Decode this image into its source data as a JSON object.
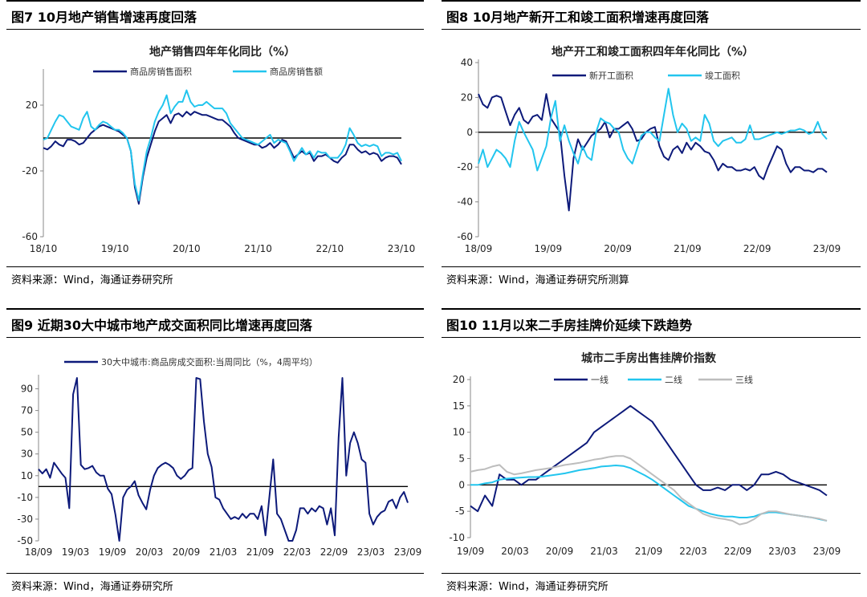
{
  "panels": [
    {
      "header": "图7  10月地产销售增速再度回落",
      "footer": "资料来源：Wind，海通证券研究所"
    },
    {
      "header": "图8  10月地产新开工和竣工面积增速再度回落",
      "footer": "资料来源：Wind，海通证券研究所测算"
    },
    {
      "header": "图9  近期30大中城市地产成交面积同比增速再度回落",
      "footer": "资料来源：Wind，海通证券研究所"
    },
    {
      "header": "图10 11月以来二手房挂牌价延续下跌趋势",
      "footer": "资料来源：Wind，海通证券研究所"
    }
  ],
  "colors": {
    "navy": "#0d1a7a",
    "cyan": "#22c5ee",
    "gray": "#bdbdbd"
  },
  "chart_data": [
    {
      "type": "line",
      "title": "地产销售四年年化同比（%）",
      "x_start": "2018-10",
      "x_step": "month",
      "xticks": [
        "18/10",
        "19/10",
        "20/10",
        "21/10",
        "22/10",
        "23/10"
      ],
      "ylim": [
        -60,
        40
      ],
      "yticks": [
        20,
        -20,
        -60
      ],
      "legend": "top",
      "series": [
        {
          "name": "商品房销售面积",
          "color": "#0d1a7a",
          "values": [
            -6,
            -7,
            -5,
            -2,
            -4,
            -5,
            -1,
            -1,
            -2,
            -4,
            -3,
            0,
            3,
            5,
            7,
            8,
            7,
            6,
            5,
            4,
            2,
            0,
            -8,
            -30,
            -40,
            -24,
            -12,
            -4,
            4,
            10,
            12,
            14,
            9,
            14,
            15,
            13,
            16,
            14,
            16,
            15,
            14,
            14,
            13,
            12,
            11,
            11,
            9,
            7,
            3,
            0,
            -1,
            -2,
            -3,
            -4,
            -4,
            -6,
            -5,
            -3,
            -6,
            -4,
            -1,
            -2,
            -7,
            -12,
            -10,
            -8,
            -10,
            -9,
            -14,
            -11,
            -11,
            -10,
            -12,
            -14,
            -15,
            -12,
            -10,
            -4,
            -4,
            -7,
            -9,
            -8,
            -10,
            -9,
            -10,
            -14,
            -12,
            -11,
            -11,
            -12,
            -16
          ]
        },
        {
          "name": "商品房销售额",
          "color": "#22c5ee",
          "values": [
            -1,
            0,
            5,
            10,
            14,
            13,
            10,
            7,
            6,
            5,
            12,
            16,
            7,
            5,
            8,
            10,
            9,
            7,
            5,
            5,
            3,
            0,
            -8,
            -28,
            -38,
            -22,
            -8,
            0,
            10,
            16,
            20,
            26,
            15,
            19,
            22,
            22,
            29,
            22,
            19,
            20,
            20,
            22,
            20,
            18,
            18,
            18,
            15,
            9,
            6,
            3,
            0,
            -1,
            -2,
            -3,
            -4,
            -2,
            0,
            2,
            -3,
            -1,
            -2,
            -3,
            -8,
            -14,
            -10,
            -6,
            -10,
            -8,
            -12,
            -8,
            -9,
            -9,
            -12,
            -12,
            -12,
            -9,
            -4,
            6,
            2,
            -3,
            -5,
            -4,
            -5,
            -4,
            -5,
            -11,
            -9,
            -9,
            -10,
            -9,
            -14
          ]
        }
      ]
    },
    {
      "type": "line",
      "title": "地产开工和竣工面积四年年化同比（%）",
      "x_start": "2018-09",
      "x_step": "month",
      "xticks": [
        "18/09",
        "19/09",
        "20/09",
        "21/09",
        "22/09",
        "23/09"
      ],
      "ylim": [
        -60,
        40
      ],
      "yticks": [
        40,
        20,
        0,
        -20,
        -40,
        -60
      ],
      "legend": "top",
      "series": [
        {
          "name": "新开工面积",
          "color": "#0d1a7a",
          "values": [
            22,
            16,
            14,
            20,
            21,
            20,
            12,
            4,
            10,
            14,
            7,
            5,
            9,
            10,
            7,
            22,
            8,
            4,
            0,
            -25,
            -45,
            -15,
            -4,
            -10,
            -6,
            -2,
            0,
            2,
            6,
            -3,
            2,
            2,
            4,
            6,
            2,
            -5,
            -4,
            0,
            2,
            3,
            -8,
            -14,
            -16,
            -10,
            -8,
            -12,
            -6,
            -10,
            -6,
            -8,
            -11,
            -12,
            -16,
            -22,
            -18,
            -20,
            -20,
            -22,
            -22,
            -21,
            -22,
            -20,
            -25,
            -27,
            -20,
            -14,
            -8,
            -10,
            -18,
            -23,
            -20,
            -20,
            -22,
            -22,
            -23,
            -21,
            -21,
            -23
          ]
        },
        {
          "name": "竣工面积",
          "color": "#22c5ee",
          "values": [
            -18,
            -10,
            -20,
            -15,
            -10,
            -12,
            -15,
            -20,
            -5,
            6,
            0,
            -5,
            -10,
            -22,
            -15,
            -8,
            8,
            18,
            -5,
            4,
            -5,
            -12,
            -18,
            -8,
            -14,
            -16,
            0,
            8,
            6,
            5,
            2,
            0,
            -10,
            -15,
            -18,
            -10,
            -2,
            0,
            0,
            -3,
            -5,
            10,
            25,
            10,
            0,
            5,
            2,
            -5,
            -3,
            -5,
            10,
            5,
            -5,
            -8,
            -5,
            -4,
            -3,
            -6,
            -6,
            -4,
            4,
            -4,
            -4,
            -3,
            -2,
            -1,
            0,
            -1,
            0,
            1,
            1,
            2,
            1,
            -1,
            0,
            6,
            -1,
            -4
          ]
        }
      ]
    },
    {
      "type": "line",
      "title": "",
      "x_start": "2018-09",
      "x_step": "week",
      "xticks": [
        "18/09",
        "19/03",
        "19/09",
        "20/03",
        "20/09",
        "21/03",
        "21/09",
        "22/03",
        "22/09",
        "23/03",
        "23/09"
      ],
      "ylim": [
        -50,
        100
      ],
      "yticks": [
        90,
        70,
        50,
        30,
        10,
        -10,
        -30,
        -50
      ],
      "legend": "top",
      "series": [
        {
          "name": "30大中城市:商品房成交面积:当周同比（%，4周平均）",
          "color": "#0d1a7a",
          "values": [
            16,
            12,
            16,
            8,
            22,
            17,
            12,
            8,
            -20,
            85,
            100,
            20,
            16,
            17,
            19,
            13,
            10,
            10,
            -2,
            -7,
            -26,
            -50,
            -10,
            -3,
            0,
            5,
            -8,
            -15,
            -21,
            -3,
            10,
            17,
            20,
            22,
            20,
            17,
            10,
            7,
            10,
            15,
            17,
            100,
            99,
            60,
            30,
            18,
            -10,
            -12,
            -20,
            -25,
            -30,
            -28,
            -30,
            -25,
            -29,
            -25,
            -25,
            -30,
            -18,
            -45,
            -10,
            25,
            -25,
            -30,
            -40,
            -50,
            -50,
            -40,
            -20,
            -20,
            -25,
            -20,
            -23,
            -18,
            -20,
            -35,
            -20,
            -45,
            45,
            100,
            10,
            40,
            50,
            40,
            25,
            22,
            -25,
            -35,
            -28,
            -24,
            -22,
            -14,
            -12,
            -20,
            -10,
            -5,
            -15
          ]
        }
      ]
    },
    {
      "type": "line",
      "title": "城市二手房出售挂牌价指数",
      "x_start": "2019-09",
      "x_step": "month",
      "xticks": [
        "19/09",
        "20/03",
        "20/09",
        "21/03",
        "21/09",
        "22/03",
        "22/09",
        "23/03",
        "23/09"
      ],
      "ylim": [
        -10,
        20
      ],
      "yticks": [
        20,
        15,
        10,
        5,
        0,
        -5,
        -10
      ],
      "legend": "top",
      "series": [
        {
          "name": "一线",
          "color": "#0d1a7a",
          "values": [
            -4,
            -5,
            -2,
            -4,
            2,
            1,
            1,
            0,
            1,
            1,
            2,
            3,
            4,
            5,
            6,
            7,
            8,
            10,
            11,
            12,
            13,
            14,
            15,
            14,
            13,
            12,
            10,
            8,
            6,
            4,
            2,
            0,
            -1,
            -1,
            -0.5,
            -1,
            0,
            0,
            -1,
            0,
            2,
            2,
            2.5,
            2,
            1,
            0.5,
            0,
            -0.5,
            -1,
            -2
          ]
        },
        {
          "name": "二线",
          "color": "#22c5ee",
          "values": [
            0,
            0,
            0.3,
            0.5,
            1,
            1.2,
            1.3,
            1.4,
            1.5,
            1.5,
            1.6,
            1.8,
            2,
            2.2,
            2.5,
            2.8,
            3,
            3.2,
            3.5,
            3.6,
            3.7,
            3.6,
            3.2,
            2.5,
            1.8,
            1,
            0,
            -1,
            -2,
            -3,
            -4,
            -4.5,
            -5,
            -5.5,
            -5.8,
            -6,
            -6,
            -6.2,
            -6.2,
            -6,
            -5.5,
            -5.2,
            -5.2,
            -5.4,
            -5.6,
            -5.8,
            -6,
            -6.2,
            -6.5,
            -6.8
          ]
        },
        {
          "name": "三线",
          "color": "#bdbdbd",
          "values": [
            2.5,
            2.8,
            3,
            3.5,
            3.8,
            2.5,
            2,
            2.2,
            2.5,
            2.8,
            3,
            3.2,
            3.5,
            3.8,
            4,
            4.2,
            4.5,
            4.8,
            5,
            5.3,
            5.5,
            5.5,
            5,
            4,
            3,
            2,
            1,
            0,
            -1,
            -2.5,
            -3.5,
            -4.5,
            -5.5,
            -6,
            -6.3,
            -6.5,
            -6.8,
            -7.5,
            -7.2,
            -6.5,
            -5.5,
            -5,
            -5,
            -5.3,
            -5.6,
            -5.8,
            -6,
            -6.2,
            -6.4,
            -6.8
          ]
        }
      ]
    }
  ]
}
